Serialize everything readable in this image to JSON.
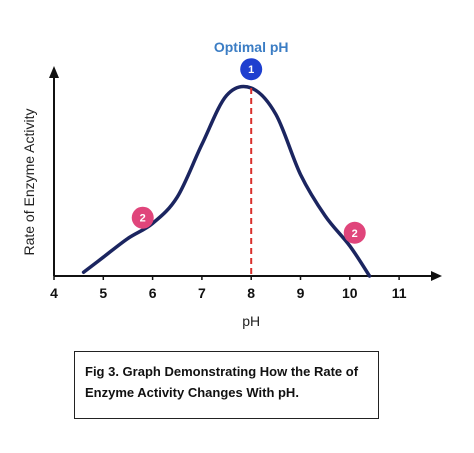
{
  "chart_data": {
    "type": "line",
    "title": "",
    "xlabel": "pH",
    "ylabel": "Rate of Enzyme Activity",
    "x_ticks": [
      "4",
      "5",
      "6",
      "7",
      "8",
      "9",
      "10",
      "11"
    ],
    "xlim": [
      4,
      11.9
    ],
    "ylim": [
      0,
      1.2
    ],
    "grid": false,
    "series": [
      {
        "color": "#1b2560",
        "x": [
          4.6,
          5.0,
          5.5,
          6.0,
          6.5,
          7.0,
          7.5,
          8.0,
          8.5,
          9.0,
          9.5,
          10.0,
          10.4
        ],
        "y": [
          0.02,
          0.1,
          0.2,
          0.28,
          0.42,
          0.7,
          0.96,
          1.0,
          0.86,
          0.54,
          0.32,
          0.16,
          0.0
        ]
      }
    ],
    "annotations": {
      "optimal_title": "Optimal pH",
      "optimal_x": 8,
      "markers": [
        {
          "label": "1",
          "x": 8.0,
          "y": 1.1,
          "color": "#1e3fcf"
        },
        {
          "label": "2",
          "x": 5.8,
          "y": 0.31,
          "color": "#e0457b"
        },
        {
          "label": "2",
          "x": 10.1,
          "y": 0.23,
          "color": "#e0457b"
        }
      ],
      "optimal_line_color": "#d9302c"
    }
  },
  "caption": {
    "line1": "Fig 3. Graph Demonstrating How the Rate of",
    "line2": "Enzyme Activity Changes With pH."
  }
}
